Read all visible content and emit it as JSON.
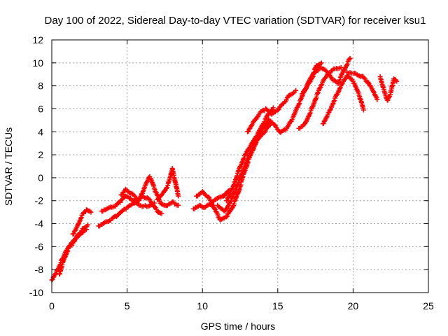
{
  "chart_data": {
    "type": "scatter",
    "title": "Day 100 of 2022, Sidereal Day-to-day VTEC variation (SDTVAR) for receiver ksu1",
    "xlabel": "GPS time / hours",
    "ylabel": "SDTVAR / TECUs",
    "xlim": [
      0,
      25
    ],
    "ylim": [
      -10,
      12
    ],
    "xticks": [
      "0",
      "5",
      "10",
      "15",
      "20",
      "25"
    ],
    "yticks": [
      "-10",
      "-8",
      "-6",
      "-4",
      "-2",
      "0",
      "2",
      "4",
      "6",
      "8",
      "10",
      "12"
    ],
    "grid": true,
    "marker": "+",
    "series": [
      {
        "name": "SDTVAR",
        "color": "#ff0000",
        "segments": [
          [
            [
              0.0,
              -8.9
            ],
            [
              0.3,
              -8.2
            ],
            [
              0.6,
              -7.4
            ],
            [
              0.9,
              -6.5
            ],
            [
              1.2,
              -5.9
            ],
            [
              1.5,
              -5.4
            ],
            [
              1.8,
              -4.9
            ],
            [
              2.1,
              -4.4
            ],
            [
              2.4,
              -4.1
            ]
          ],
          [
            [
              0.5,
              -8.4
            ],
            [
              0.8,
              -7.1
            ],
            [
              1.1,
              -6.2
            ],
            [
              1.4,
              -5.7
            ],
            [
              1.7,
              -5.2
            ],
            [
              2.0,
              -4.8
            ],
            [
              2.3,
              -4.5
            ]
          ],
          [
            [
              1.4,
              -4.9
            ],
            [
              1.7,
              -4.2
            ],
            [
              2.0,
              -3.3
            ],
            [
              2.3,
              -2.8
            ],
            [
              2.6,
              -3.0
            ]
          ],
          [
            [
              3.1,
              -4.2
            ],
            [
              3.5,
              -3.9
            ],
            [
              4.0,
              -3.6
            ],
            [
              4.5,
              -3.1
            ],
            [
              5.0,
              -2.6
            ],
            [
              5.5,
              -2.2
            ],
            [
              6.0,
              -1.6
            ],
            [
              6.5,
              -1.9
            ],
            [
              7.0,
              -2.9
            ],
            [
              7.3,
              -3.1
            ]
          ],
          [
            [
              3.3,
              -2.9
            ],
            [
              3.8,
              -2.6
            ],
            [
              4.3,
              -2.4
            ],
            [
              4.6,
              -2.0
            ],
            [
              4.9,
              -1.6
            ],
            [
              5.3,
              -1.9
            ],
            [
              5.8,
              -2.4
            ],
            [
              6.3,
              -2.5
            ],
            [
              6.8,
              -2.2
            ]
          ],
          [
            [
              4.6,
              -1.5
            ],
            [
              4.9,
              -1.0
            ],
            [
              5.3,
              -1.4
            ],
            [
              5.8,
              -2.0
            ],
            [
              6.2,
              -0.7
            ],
            [
              6.5,
              0.1
            ],
            [
              6.8,
              -0.9
            ],
            [
              7.2,
              -2.2
            ],
            [
              7.6,
              -2.4
            ],
            [
              8.0,
              -2.1
            ],
            [
              8.4,
              -2.4
            ]
          ],
          [
            [
              7.0,
              -1.9
            ],
            [
              7.4,
              -1.3
            ],
            [
              7.7,
              -0.7
            ],
            [
              8.0,
              0.8
            ],
            [
              8.2,
              -0.4
            ],
            [
              8.4,
              -1.6
            ]
          ],
          [
            [
              9.4,
              -2.7
            ],
            [
              9.8,
              -2.4
            ],
            [
              10.2,
              -2.6
            ],
            [
              10.6,
              -2.2
            ],
            [
              11.0,
              -1.8
            ],
            [
              11.4,
              -1.6
            ],
            [
              11.8,
              -1.1
            ]
          ],
          [
            [
              9.6,
              -1.6
            ],
            [
              10.0,
              -1.2
            ],
            [
              10.4,
              -1.7
            ],
            [
              10.8,
              -2.7
            ],
            [
              11.2,
              -3.7
            ],
            [
              11.6,
              -3.4
            ],
            [
              12.0,
              -2.6
            ],
            [
              12.4,
              -1.2
            ],
            [
              12.8,
              0.6
            ],
            [
              13.2,
              2.0
            ],
            [
              13.6,
              3.2
            ],
            [
              14.0,
              4.2
            ],
            [
              14.4,
              5.0
            ]
          ],
          [
            [
              11.0,
              -2.4
            ],
            [
              11.5,
              -2.9
            ],
            [
              12.0,
              -1.7
            ],
            [
              12.5,
              0.0
            ],
            [
              13.0,
              1.6
            ],
            [
              13.5,
              3.0
            ],
            [
              14.0,
              3.8
            ],
            [
              14.5,
              4.6
            ]
          ],
          [
            [
              11.6,
              -2.0
            ],
            [
              12.0,
              -0.9
            ],
            [
              12.4,
              0.6
            ],
            [
              12.8,
              1.9
            ],
            [
              13.2,
              2.8
            ],
            [
              13.6,
              3.6
            ],
            [
              14.0,
              4.6
            ],
            [
              14.4,
              5.6
            ],
            [
              14.7,
              6.1
            ]
          ],
          [
            [
              13.0,
              4.0
            ],
            [
              13.4,
              4.9
            ],
            [
              13.8,
              5.6
            ],
            [
              14.2,
              6.0
            ],
            [
              14.6,
              5.5
            ],
            [
              15.0,
              5.9
            ],
            [
              15.4,
              6.5
            ],
            [
              15.8,
              7.2
            ],
            [
              16.2,
              7.6
            ]
          ],
          [
            [
              14.4,
              5.1
            ],
            [
              14.8,
              4.6
            ],
            [
              15.2,
              3.9
            ],
            [
              15.6,
              4.3
            ],
            [
              16.0,
              5.2
            ],
            [
              16.4,
              6.4
            ],
            [
              16.8,
              7.6
            ],
            [
              17.2,
              8.7
            ],
            [
              17.6,
              9.8
            ],
            [
              17.9,
              10.0
            ]
          ],
          [
            [
              16.4,
              4.3
            ],
            [
              16.8,
              4.7
            ],
            [
              17.2,
              5.8
            ],
            [
              17.6,
              7.2
            ],
            [
              18.0,
              8.4
            ],
            [
              18.4,
              9.1
            ],
            [
              18.8,
              9.5
            ],
            [
              19.2,
              9.6
            ]
          ],
          [
            [
              16.6,
              7.3
            ],
            [
              17.0,
              8.1
            ],
            [
              17.4,
              9.0
            ],
            [
              17.8,
              9.6
            ],
            [
              18.2,
              9.3
            ],
            [
              18.6,
              8.6
            ],
            [
              19.0,
              8.2
            ],
            [
              19.4,
              9.4
            ],
            [
              19.8,
              10.4
            ]
          ],
          [
            [
              18.0,
              4.7
            ],
            [
              18.4,
              5.7
            ],
            [
              18.8,
              6.9
            ],
            [
              19.2,
              8.0
            ],
            [
              19.6,
              8.9
            ],
            [
              20.0,
              8.4
            ],
            [
              20.4,
              7.2
            ],
            [
              20.7,
              5.9
            ]
          ],
          [
            [
              19.6,
              9.2
            ],
            [
              20.1,
              9.1
            ],
            [
              20.6,
              8.8
            ],
            [
              21.0,
              8.3
            ],
            [
              21.3,
              7.6
            ],
            [
              21.6,
              6.8
            ]
          ],
          [
            [
              21.8,
              8.8
            ],
            [
              22.1,
              7.4
            ],
            [
              22.3,
              6.7
            ],
            [
              22.5,
              7.4
            ],
            [
              22.7,
              8.6
            ],
            [
              22.9,
              8.4
            ]
          ]
        ]
      }
    ]
  }
}
